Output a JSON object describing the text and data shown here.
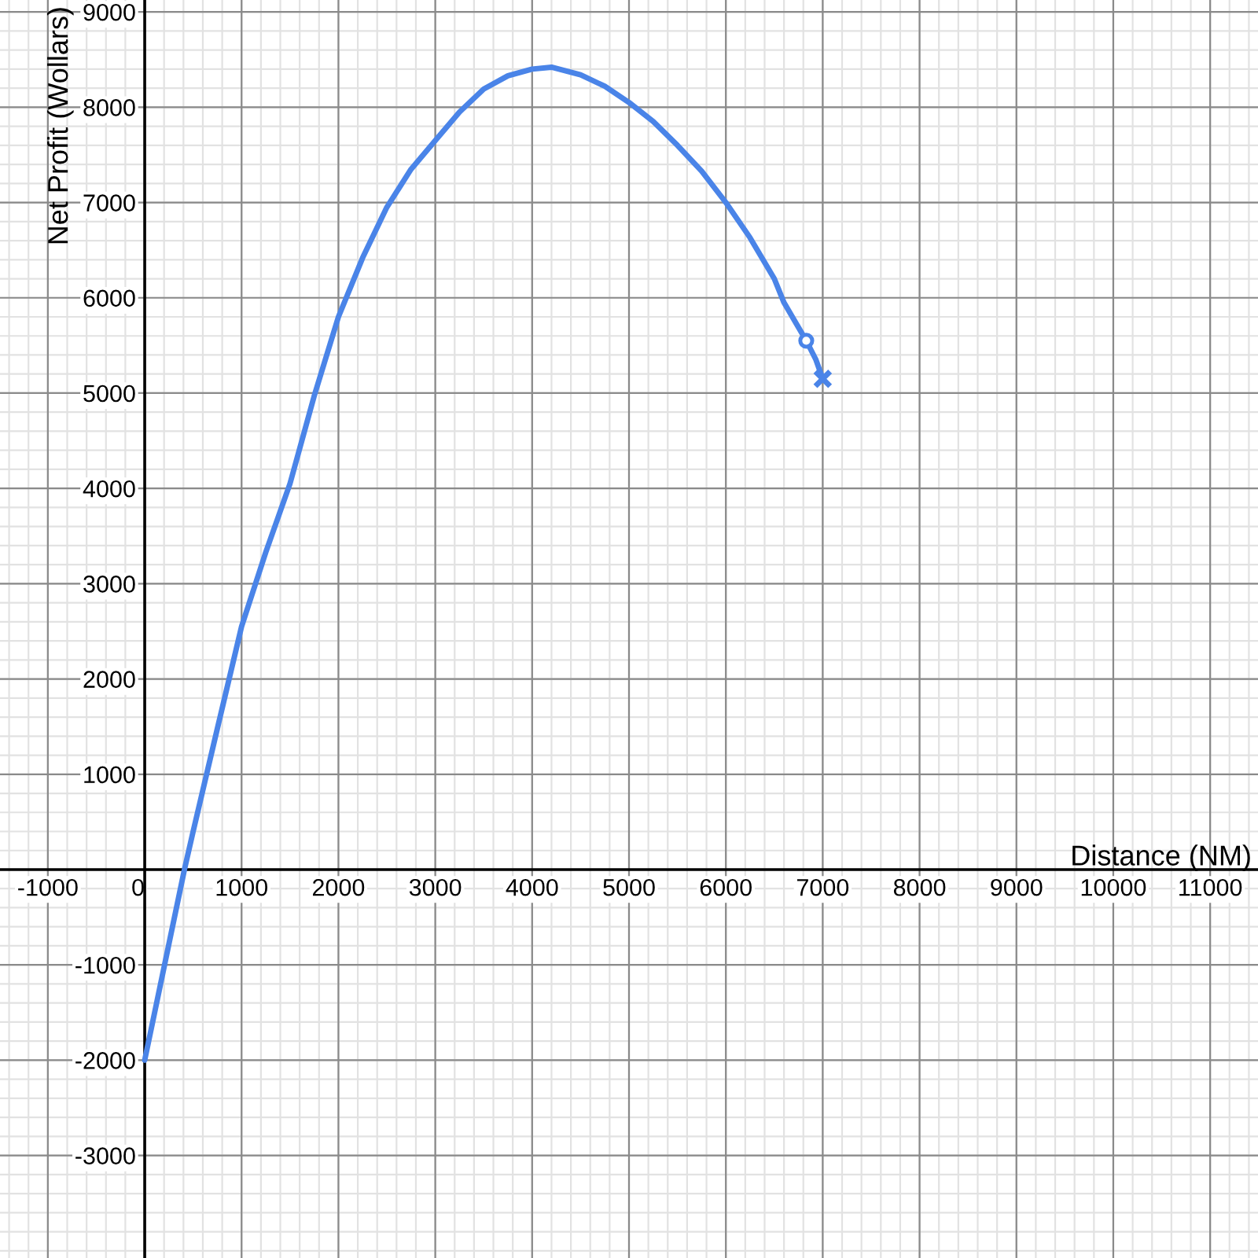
{
  "chart_data": {
    "type": "line",
    "xlabel": "Distance (NM)",
    "ylabel": "Net Profit (Wollars)",
    "xlim": [
      -1494,
      11494
    ],
    "ylim": [
      -4076,
      9125
    ],
    "xticks": [
      -1000,
      0,
      1000,
      2000,
      3000,
      4000,
      5000,
      6000,
      7000,
      8000,
      9000,
      10000,
      11000
    ],
    "yticks": [
      -3000,
      -2000,
      -1000,
      1000,
      2000,
      3000,
      4000,
      5000,
      6000,
      7000,
      8000,
      9000
    ],
    "grid": true,
    "series": [
      {
        "color": "#4a84e8",
        "marker": "none",
        "x": [
          0,
          250,
          410,
          500,
          750,
          1000,
          1250,
          1500,
          1750,
          2000,
          2250,
          2500,
          2750,
          3000,
          3250,
          3500,
          3750,
          4000,
          4200,
          4500,
          4750,
          5000,
          5250,
          5500,
          5750,
          6000,
          6250,
          6500,
          6600,
          6830,
          6930,
          7000
        ],
        "values": [
          -2000,
          -780,
          0,
          400,
          1480,
          2550,
          3330,
          4050,
          4970,
          5800,
          6420,
          6950,
          7350,
          7650,
          7950,
          8190,
          8330,
          8400,
          8420,
          8340,
          8220,
          8050,
          7850,
          7600,
          7330,
          7000,
          6630,
          6200,
          5950,
          5550,
          5350,
          5150
        ]
      },
      {
        "type": "scatter",
        "color": "#4a84e8",
        "marker": "circle",
        "x": [
          6830
        ],
        "values": [
          5550
        ]
      },
      {
        "type": "scatter",
        "color": "#4a84e8",
        "marker": "cross",
        "x": [
          7000
        ],
        "values": [
          5150
        ]
      }
    ]
  }
}
